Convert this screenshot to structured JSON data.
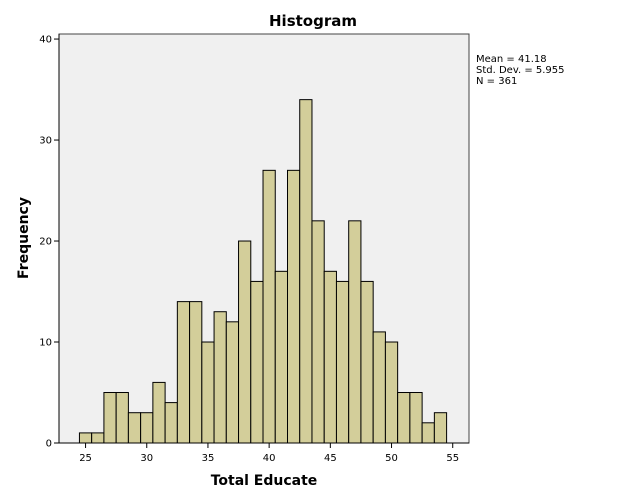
{
  "chart_data": {
    "type": "bar",
    "subtype": "histogram",
    "title": "Histogram",
    "xlabel": "Total Educate",
    "ylabel": "Frequency",
    "bin_width": 1,
    "categories": [
      25,
      26,
      27,
      28,
      29,
      30,
      31,
      32,
      33,
      34,
      35,
      36,
      37,
      38,
      39,
      40,
      41,
      42,
      43,
      44,
      45,
      46,
      47,
      48,
      49,
      50,
      51,
      52,
      53,
      54
    ],
    "values": [
      1,
      1,
      5,
      5,
      3,
      3,
      6,
      4,
      14,
      14,
      10,
      13,
      12,
      20,
      16,
      27,
      17,
      27,
      34,
      22,
      17,
      16,
      22,
      16,
      11,
      10,
      5,
      5,
      2,
      3
    ],
    "xlim": [
      22.83,
      56.33
    ],
    "ylim": [
      0,
      40.5
    ],
    "xticks": [
      25,
      30,
      35,
      40,
      45,
      50,
      55
    ],
    "yticks": [
      0,
      10,
      20,
      30,
      40
    ],
    "grid": false,
    "bar_color": "#d3ce9a",
    "bar_edge_color": "#000000",
    "plot_background": "#f0f0f0",
    "stats": {
      "mean": "Mean = 41.18",
      "std_dev": "Std. Dev. = 5.955",
      "n": "N = 361"
    },
    "legend_position": "right"
  }
}
